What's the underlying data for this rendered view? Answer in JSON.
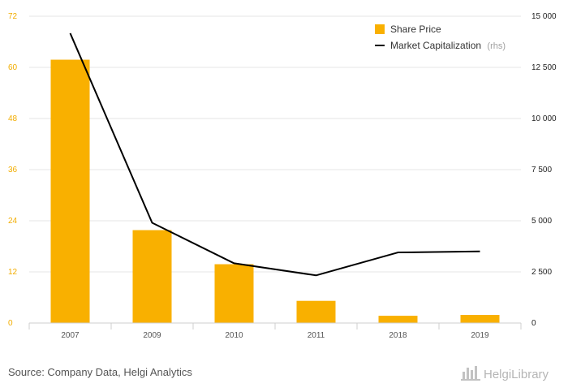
{
  "chart_data": {
    "type": "bar",
    "categories": [
      "2007",
      "2009",
      "2010",
      "2011",
      "2018",
      "2019"
    ],
    "series": [
      {
        "name": "Share Price",
        "type": "bar",
        "axis": "left",
        "color": "#f9b000",
        "values": [
          61.8,
          21.8,
          13.8,
          5.2,
          1.7,
          1.9
        ]
      },
      {
        "name": "Market Capitalization",
        "name_suffix": "(rhs)",
        "type": "line",
        "axis": "right",
        "color": "#000000",
        "values": [
          14170,
          4900,
          2920,
          2330,
          3450,
          3500
        ]
      }
    ],
    "y_left": {
      "ylim": [
        0,
        72
      ],
      "ticks": [
        "0",
        "12",
        "24",
        "36",
        "48",
        "60",
        "72"
      ],
      "values": [
        0,
        12,
        24,
        36,
        48,
        60,
        72
      ]
    },
    "y_right": {
      "ylim": [
        0,
        15000
      ],
      "ticks": [
        "0",
        "2 500",
        "5 000",
        "7 500",
        "10 000",
        "12 500",
        "15 000"
      ],
      "values": [
        0,
        2500,
        5000,
        7500,
        10000,
        12500,
        15000
      ]
    },
    "grid": true,
    "legend": "top-right"
  },
  "footer": {
    "source": "Source: Company Data, Helgi Analytics",
    "brand": "HelgiLibrary",
    "brand_icon": "helgi-logo-icon"
  }
}
